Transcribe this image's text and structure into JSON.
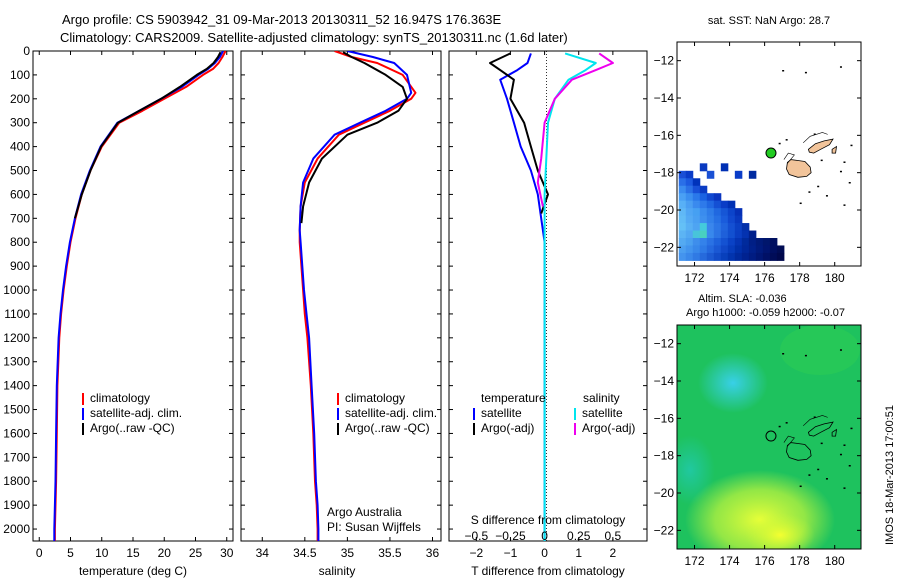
{
  "header": {
    "line1": "Argo profile: CS 5903942_31 09-Mar-2013 20130311_52 16.947S 176.363E",
    "line2": "Climatology: CARS2009. Satellite-adjusted climatology: synTS_20130311.nc (1.6d later)"
  },
  "stamp": "IMOS 18-Mar-2013 17:00:51",
  "colors": {
    "climatology": "#ff0000",
    "satellite": "#0000ff",
    "argo": "#000000",
    "sat_sal": "#00e5ee",
    "argo_sal": "#ee00ee",
    "grid": "#aaaaaa"
  },
  "chart_data": [
    {
      "type": "line",
      "name": "temperature-profile",
      "xlabel": "temperature (deg C)",
      "ylabel": "",
      "xlim": [
        -1,
        31
      ],
      "ylim": [
        2050,
        0
      ],
      "xticks": [
        0,
        5,
        10,
        15,
        20,
        25,
        30
      ],
      "yticks": [
        0,
        100,
        200,
        300,
        400,
        500,
        600,
        700,
        800,
        900,
        1000,
        1100,
        1200,
        1300,
        1400,
        1500,
        1600,
        1700,
        1800,
        1900,
        2000
      ],
      "legend": [
        "climatology",
        "satellite-adj. clim.",
        "Argo(..raw -QC)"
      ],
      "series": [
        {
          "name": "climatology",
          "color": "#ff0000",
          "x": [
            29.8,
            29.3,
            28.7,
            27.8,
            26.2,
            23.5,
            20.0,
            16.5,
            12.8,
            10.0,
            8.2,
            6.8,
            5.8,
            5.0,
            4.4,
            3.9,
            3.5,
            3.2,
            2.9,
            2.8,
            2.7,
            2.6,
            2.5,
            2.5
          ],
          "y": [
            0,
            25,
            50,
            75,
            100,
            150,
            200,
            250,
            300,
            400,
            500,
            600,
            700,
            800,
            900,
            1000,
            1100,
            1200,
            1400,
            1600,
            1800,
            1900,
            2000,
            2050
          ]
        },
        {
          "name": "satellite-adj. clim.",
          "color": "#0000ff",
          "x": [
            29.4,
            28.9,
            28.1,
            27.0,
            25.5,
            22.8,
            19.5,
            16.0,
            12.5,
            9.8,
            8.1,
            6.7,
            5.7,
            4.9,
            4.3,
            3.8,
            3.4,
            3.1,
            2.8,
            2.7,
            2.6,
            2.5,
            2.4,
            2.4
          ],
          "y": [
            0,
            25,
            50,
            75,
            100,
            150,
            200,
            250,
            300,
            400,
            500,
            600,
            700,
            800,
            900,
            1000,
            1100,
            1200,
            1400,
            1600,
            1800,
            1900,
            2000,
            2050
          ]
        },
        {
          "name": "Argo(..raw -QC)",
          "color": "#000000",
          "x": [
            29.0,
            28.6,
            27.9,
            26.8,
            25.2,
            22.5,
            19.5,
            16.0,
            12.6,
            9.9,
            8.2,
            6.8,
            5.7
          ],
          "y": [
            5,
            25,
            50,
            75,
            100,
            150,
            200,
            250,
            300,
            400,
            500,
            600,
            700
          ]
        }
      ]
    },
    {
      "type": "line",
      "name": "salinity-profile",
      "xlabel": "salinity",
      "xlim": [
        33.75,
        36.1
      ],
      "ylim": [
        2050,
        0
      ],
      "xticks": [
        34,
        34.5,
        35,
        35.5,
        36
      ],
      "legend": [
        "climatology",
        "satellite-adj. clim.",
        "Argo(..raw -QC)"
      ],
      "annotation": [
        "Argo Australia",
        "PI: Susan Wijffels"
      ],
      "series": [
        {
          "name": "climatology",
          "color": "#ff0000",
          "x": [
            34.85,
            35.05,
            35.35,
            35.65,
            35.8,
            35.75,
            35.5,
            35.2,
            34.9,
            34.65,
            34.5,
            34.45,
            34.44,
            34.44,
            34.46,
            34.48,
            34.5,
            34.53,
            34.57,
            34.6,
            34.62,
            34.64,
            34.65,
            34.65
          ],
          "y": [
            0,
            25,
            50,
            100,
            175,
            200,
            250,
            300,
            350,
            450,
            550,
            650,
            750,
            800,
            900,
            1000,
            1100,
            1200,
            1400,
            1600,
            1800,
            1900,
            2000,
            2050
          ]
        },
        {
          "name": "satellite-adj. clim.",
          "color": "#0000ff",
          "x": [
            35.0,
            35.3,
            35.55,
            35.7,
            35.75,
            35.7,
            35.45,
            35.15,
            34.85,
            34.6,
            34.48,
            34.45,
            34.44,
            34.45,
            34.47,
            34.49,
            34.52,
            34.55,
            34.58,
            34.61,
            34.63,
            34.65,
            34.66,
            34.66
          ],
          "y": [
            0,
            25,
            50,
            100,
            175,
            200,
            250,
            300,
            350,
            450,
            550,
            650,
            750,
            800,
            900,
            1000,
            1100,
            1200,
            1400,
            1600,
            1800,
            1900,
            2000,
            2050
          ]
        },
        {
          "name": "Argo(..raw -QC)",
          "color": "#000000",
          "x": [
            34.95,
            35.05,
            35.2,
            35.45,
            35.65,
            35.7,
            35.6,
            35.35,
            35.0,
            34.7,
            34.55,
            34.48,
            34.46
          ],
          "y": [
            5,
            25,
            50,
            100,
            150,
            200,
            250,
            300,
            350,
            450,
            550,
            650,
            720
          ]
        }
      ]
    },
    {
      "type": "line",
      "name": "difference-profile",
      "xlabel": "T difference from climatology",
      "xlabel_top": "S difference from climatology",
      "xlim": [
        -2.8,
        3.0
      ],
      "ylim": [
        2050,
        0
      ],
      "xticks": [
        -2,
        -1,
        0,
        1,
        2
      ],
      "xticks_top": [
        -0.5,
        -0.25,
        0,
        0.25,
        0.5
      ],
      "legend_headers": [
        "temperature",
        "salinity"
      ],
      "legend": [
        "satellite",
        "Argo(-adj)",
        "satellite",
        "Argo(-adj)"
      ],
      "series": [
        {
          "name": "T satellite",
          "color": "#0000ff",
          "x": [
            -0.4,
            -0.5,
            -0.8,
            -1.3,
            -1.1,
            -0.9,
            -0.7,
            -0.4,
            -0.2,
            -0.1,
            0,
            0,
            0,
            0
          ],
          "y": [
            10,
            50,
            80,
            120,
            200,
            300,
            400,
            500,
            600,
            700,
            800,
            1000,
            1500,
            2050
          ]
        },
        {
          "name": "T Argo(-adj)",
          "color": "#000000",
          "x": [
            -1.0,
            -1.6,
            -1.3,
            -0.9,
            -1.0,
            -0.6,
            -0.4,
            -0.2,
            0.1,
            -0.1
          ],
          "y": [
            10,
            50,
            80,
            120,
            200,
            300,
            400,
            500,
            600,
            680
          ]
        },
        {
          "name": "S satellite",
          "color": "#00e5ee",
          "x": [
            0.6,
            1.5,
            1.2,
            0.7,
            0.3,
            0.1,
            0.05,
            0,
            0,
            0
          ],
          "y": [
            10,
            50,
            80,
            120,
            200,
            300,
            450,
            600,
            1000,
            2050
          ]
        },
        {
          "name": "S Argo(-adj)",
          "color": "#ee00ee",
          "x": [
            1.6,
            2.0,
            1.5,
            0.8,
            0.3,
            0.0,
            -0.1,
            -0.2,
            -0.05
          ],
          "y": [
            10,
            50,
            80,
            120,
            200,
            300,
            450,
            550,
            650
          ]
        }
      ]
    },
    {
      "type": "heatmap",
      "name": "sst-map",
      "title": "sat. SST: NaN Argo: 28.7",
      "xlim": [
        171,
        181.5
      ],
      "ylim": [
        -23,
        -11
      ],
      "xticks": [
        172,
        174,
        176,
        178,
        180
      ],
      "yticks": [
        -12,
        -14,
        -16,
        -18,
        -20,
        -22
      ],
      "argo_position": [
        176.363,
        -16.947
      ],
      "cells": [
        [
          171.3,
          -18.1
        ],
        [
          171.7,
          -18.1
        ],
        [
          171.3,
          -18.5
        ],
        [
          171.7,
          -18.5
        ],
        [
          172.1,
          -18.5
        ],
        [
          171.3,
          -18.9
        ],
        [
          171.7,
          -18.9
        ],
        [
          172.1,
          -18.9
        ],
        [
          172.5,
          -18.9
        ],
        [
          171.3,
          -19.3
        ],
        [
          171.7,
          -19.3
        ],
        [
          172.1,
          -19.3
        ],
        [
          172.5,
          -19.3
        ],
        [
          172.9,
          -19.3
        ],
        [
          173.3,
          -19.3
        ],
        [
          171.3,
          -19.7
        ],
        [
          171.7,
          -19.7
        ],
        [
          172.1,
          -19.7
        ],
        [
          172.5,
          -19.7
        ],
        [
          172.9,
          -19.7
        ],
        [
          173.3,
          -19.7
        ],
        [
          173.7,
          -19.7
        ],
        [
          174.1,
          -19.7
        ],
        [
          171.3,
          -20.1
        ],
        [
          171.7,
          -20.1
        ],
        [
          172.1,
          -20.1
        ],
        [
          172.5,
          -20.1
        ],
        [
          172.9,
          -20.1
        ],
        [
          173.3,
          -20.1
        ],
        [
          173.7,
          -20.1
        ],
        [
          174.1,
          -20.1
        ],
        [
          174.5,
          -20.1
        ],
        [
          171.3,
          -20.5
        ],
        [
          171.7,
          -20.5
        ],
        [
          172.1,
          -20.5
        ],
        [
          172.5,
          -20.5
        ],
        [
          172.9,
          -20.5
        ],
        [
          173.3,
          -20.5
        ],
        [
          173.7,
          -20.5
        ],
        [
          174.1,
          -20.5
        ],
        [
          174.5,
          -20.5
        ],
        [
          171.3,
          -20.9
        ],
        [
          171.7,
          -20.9
        ],
        [
          172.1,
          -20.9
        ],
        [
          172.5,
          -20.9
        ],
        [
          172.9,
          -20.9
        ],
        [
          173.3,
          -20.9
        ],
        [
          173.7,
          -20.9
        ],
        [
          174.1,
          -20.9
        ],
        [
          174.5,
          -20.9
        ],
        [
          174.9,
          -20.9
        ],
        [
          171.3,
          -21.3
        ],
        [
          171.7,
          -21.3
        ],
        [
          172.1,
          -21.3
        ],
        [
          172.5,
          -21.3
        ],
        [
          172.9,
          -21.3
        ],
        [
          173.3,
          -21.3
        ],
        [
          173.7,
          -21.3
        ],
        [
          174.1,
          -21.3
        ],
        [
          174.5,
          -21.3
        ],
        [
          174.9,
          -21.3
        ],
        [
          175.3,
          -21.3
        ],
        [
          171.3,
          -21.7
        ],
        [
          171.7,
          -21.7
        ],
        [
          172.1,
          -21.7
        ],
        [
          172.5,
          -21.7
        ],
        [
          172.9,
          -21.7
        ],
        [
          173.3,
          -21.7
        ],
        [
          173.7,
          -21.7
        ],
        [
          174.1,
          -21.7
        ],
        [
          174.5,
          -21.7
        ],
        [
          174.9,
          -21.7
        ],
        [
          175.3,
          -21.7
        ],
        [
          175.7,
          -21.7
        ],
        [
          176.1,
          -21.7
        ],
        [
          176.5,
          -21.7
        ],
        [
          171.3,
          -22.1
        ],
        [
          171.7,
          -22.1
        ],
        [
          172.1,
          -22.1
        ],
        [
          172.5,
          -22.1
        ],
        [
          172.9,
          -22.1
        ],
        [
          173.3,
          -22.1
        ],
        [
          173.7,
          -22.1
        ],
        [
          174.1,
          -22.1
        ],
        [
          174.5,
          -22.1
        ],
        [
          174.9,
          -22.1
        ],
        [
          175.3,
          -22.1
        ],
        [
          175.7,
          -22.1
        ],
        [
          176.1,
          -22.1
        ],
        [
          176.5,
          -22.1
        ],
        [
          176.9,
          -22.1
        ],
        [
          171.3,
          -22.5
        ],
        [
          171.7,
          -22.5
        ],
        [
          172.1,
          -22.5
        ],
        [
          172.5,
          -22.5
        ],
        [
          172.9,
          -22.5
        ],
        [
          173.3,
          -22.5
        ],
        [
          173.7,
          -22.5
        ],
        [
          174.1,
          -22.5
        ],
        [
          174.5,
          -22.5
        ],
        [
          174.9,
          -22.5
        ],
        [
          175.3,
          -22.5
        ],
        [
          175.7,
          -22.5
        ],
        [
          176.1,
          -22.5
        ],
        [
          176.5,
          -22.5
        ],
        [
          176.9,
          -22.5
        ],
        [
          173.7,
          -17.7
        ],
        [
          172.5,
          -17.7
        ],
        [
          174.5,
          -18.1
        ],
        [
          175.3,
          -18.1
        ],
        [
          172.9,
          -18.1
        ]
      ],
      "cell_colors": [
        "#1a4fd6",
        "#0a3cc8",
        "#2a6fe8",
        "#1c5ae0",
        "#0033bb",
        "#3b8cf0",
        "#2a70e6",
        "#1750d8",
        "#0a3bc4",
        "#4aa0f4",
        "#3a8ef0",
        "#2a78ea",
        "#1a62e2",
        "#1048d0",
        "#0a36c0",
        "#58b0f6",
        "#4a9ef2",
        "#3a8aee",
        "#2e7aea",
        "#2068e2",
        "#1450d4",
        "#0a3cc6",
        "#0030b4",
        "#60b8f6",
        "#50a6f4",
        "#46a0f2",
        "#3a8cee",
        "#2e7ce8",
        "#2068e0",
        "#1656d6",
        "#0c44ca",
        "#0530b6",
        "#62bcf6",
        "#54aaf4",
        "#4aa0f2",
        "#3e90ee",
        "#3280ea",
        "#2670e4",
        "#1a5cdc",
        "#1048ce",
        "#0838be",
        "#64c0f6",
        "#58b0f4",
        "#4ea4f2",
        "#44cadc",
        "#3a86ec",
        "#2c76e6",
        "#2064de",
        "#1450d2",
        "#0a40c4",
        "#0230aa",
        "#5cb4f4",
        "#52a8f2",
        "#48c4da",
        "#48d0c0",
        "#3888ec",
        "#2c74e4",
        "#1e60da",
        "#1250d0",
        "#0a3ec2",
        "#0432b0",
        "#00208c",
        "#54aaf2",
        "#4aa0f0",
        "#3e8eec",
        "#3482ea",
        "#2a72e4",
        "#1e62dc",
        "#1452d2",
        "#0a42c6",
        "#0434b4",
        "#002a9c",
        "#001f86",
        "#001a78",
        "#00166c",
        "#001060",
        "#4c9ff0",
        "#4294ee",
        "#3888ea",
        "#2e7ae6",
        "#2468de",
        "#1a58d4",
        "#1048c8",
        "#063cbc",
        "#0030aa",
        "#00279a",
        "#00208a",
        "#001a7c",
        "#001470",
        "#000f60",
        "#000c54",
        "#4494ee",
        "#3a88ea",
        "#307ae4",
        "#266adc",
        "#1c5ad2",
        "#124cc8",
        "#0840bc",
        "#0234ae",
        "#002a9e",
        "#002290",
        "#001c82",
        "#001674",
        "#001066",
        "#000c58",
        "#00084c",
        "#0030b4",
        "#0a3ac0",
        "#0a3cc8",
        "#002aa0",
        "#1a50d4"
      ]
    },
    {
      "type": "heatmap",
      "name": "sla-map",
      "title_line1": "Altim. SLA: -0.036",
      "title_line2": "Argo h1000: -0.059 h2000: -0.07",
      "xlim": [
        171,
        181.5
      ],
      "ylim": [
        -23,
        -11
      ],
      "xticks": [
        172,
        174,
        176,
        178,
        180
      ],
      "yticks": [
        -12,
        -14,
        -16,
        -18,
        -20,
        -22
      ],
      "argo_position": [
        176.363,
        -16.947
      ]
    }
  ]
}
